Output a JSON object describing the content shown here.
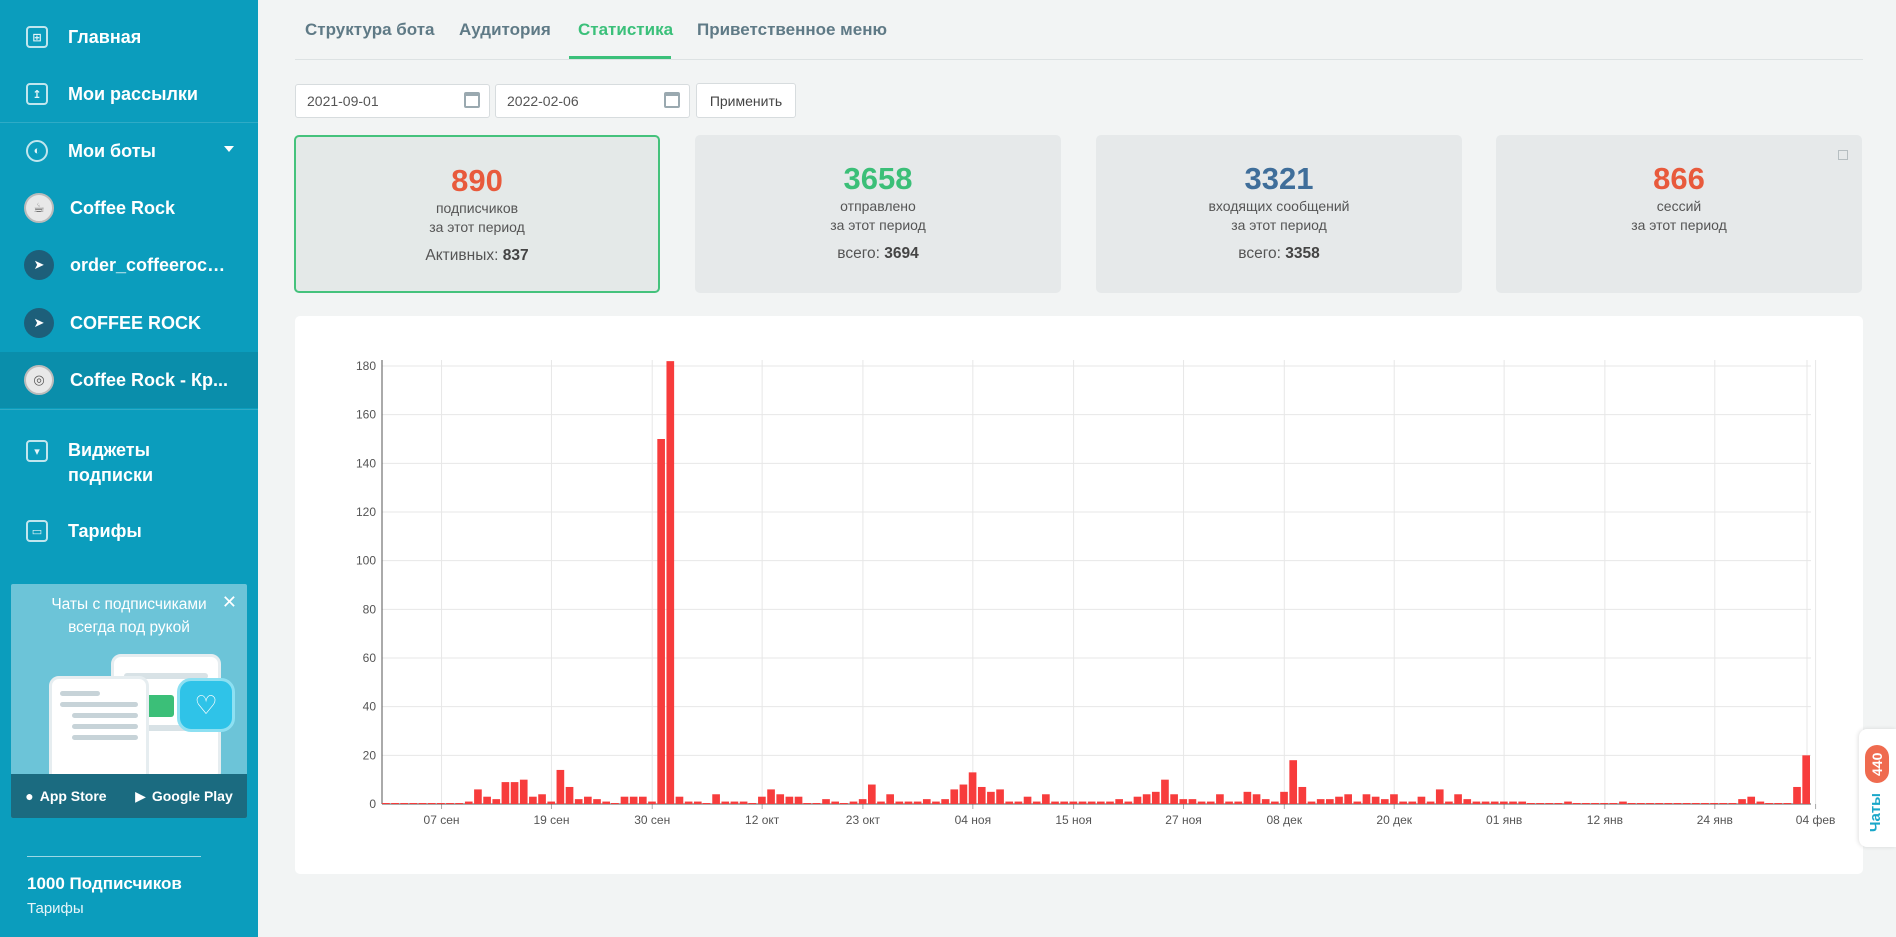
{
  "sidebar": {
    "nav_top": [
      {
        "label": "Главная",
        "icon": "home-icon"
      },
      {
        "label": "Мои рассылки",
        "icon": "mailing-icon"
      },
      {
        "label": "Мои боты",
        "icon": "bots-icon"
      }
    ],
    "bots": [
      {
        "label": "Coffee Rock",
        "icon": "whatsapp-icon"
      },
      {
        "label": "order_coffeerock...",
        "icon": "telegram-icon"
      },
      {
        "label": "COFFEE ROCK",
        "icon": "telegram-icon"
      },
      {
        "label": "Coffee Rock - Кр...",
        "icon": "instagram-icon"
      }
    ],
    "nav_bottom": [
      {
        "label": "Виджеты подписки",
        "icon": "widget-icon"
      },
      {
        "label": "Тарифы",
        "icon": "wallet-icon"
      }
    ],
    "promo": {
      "text": "Чаты с подписчиками всегда под рукой",
      "app_store": "App Store",
      "google_play": "Google Play"
    },
    "plan": {
      "title": "1000 Подписчиков",
      "link": "Тарифы"
    }
  },
  "tabs": [
    {
      "label": "Структура бота",
      "active": false
    },
    {
      "label": "Аудитория",
      "active": false
    },
    {
      "label": "Статистика",
      "active": true
    },
    {
      "label": "Приветственное меню",
      "active": false
    }
  ],
  "filter": {
    "date_from": "2021-09-01",
    "date_to": "2022-02-06",
    "apply_label": "Применить"
  },
  "cards": [
    {
      "value": "890",
      "label1": "подписчиков",
      "label2": "за этот период",
      "extra_label": "Активных: ",
      "extra_value": "837",
      "color": "#e85a3c"
    },
    {
      "value": "3658",
      "label1": "отправлено",
      "label2": "за этот период",
      "extra_label": "всего: ",
      "extra_value": "3694",
      "color": "#3bbf78"
    },
    {
      "value": "3321",
      "label1": "входящих сообщений",
      "label2": "за этот период",
      "extra_label": "всего: ",
      "extra_value": "3358",
      "color": "#3f6e9a"
    },
    {
      "value": "866",
      "label1": "сессий",
      "label2": "за этот период",
      "extra_label": "",
      "extra_value": "",
      "color": "#e85a3c"
    }
  ],
  "chats_tab": {
    "count": "440",
    "label": "Чаты"
  },
  "chart_data": {
    "type": "bar",
    "ylim": [
      0,
      180
    ],
    "yticks": [
      0,
      20,
      40,
      60,
      80,
      100,
      120,
      140,
      160,
      180
    ],
    "xtick_labels": [
      "07 сен",
      "19 сен",
      "30 сен",
      "12 окт",
      "23 окт",
      "04 ноя",
      "15 ноя",
      "27 ноя",
      "08 дек",
      "20 дек",
      "01 янв",
      "12 янв",
      "24 янв",
      "04 фев"
    ],
    "xtick_day_index": [
      6,
      18,
      29,
      41,
      52,
      64,
      75,
      87,
      98,
      110,
      122,
      133,
      145,
      156
    ],
    "bar_color": "#f73c3c",
    "values": [
      0,
      0,
      0,
      0,
      0,
      0,
      0,
      0,
      0,
      1,
      6,
      3,
      2,
      9,
      9,
      10,
      3,
      4,
      1,
      14,
      7,
      2,
      3,
      2,
      1,
      0,
      3,
      3,
      3,
      1,
      150,
      182,
      3,
      1,
      1,
      0,
      4,
      1,
      1,
      1,
      0,
      3,
      6,
      4,
      3,
      3,
      0,
      0,
      2,
      1,
      0,
      1,
      2,
      8,
      1,
      4,
      1,
      1,
      1,
      2,
      1,
      2,
      6,
      8,
      13,
      7,
      5,
      6,
      1,
      1,
      3,
      1,
      4,
      1,
      1,
      1,
      1,
      1,
      1,
      1,
      2,
      1,
      3,
      4,
      5,
      10,
      4,
      2,
      2,
      1,
      1,
      4,
      1,
      1,
      5,
      4,
      2,
      1,
      5,
      18,
      7,
      1,
      2,
      2,
      3,
      4,
      1,
      4,
      3,
      2,
      4,
      1,
      1,
      3,
      1,
      6,
      1,
      4,
      2,
      1,
      1,
      1,
      1,
      1,
      1,
      0,
      0,
      0,
      0,
      1,
      0,
      0,
      0,
      0,
      0,
      1,
      0,
      0,
      0,
      0,
      0,
      0,
      0,
      0,
      0,
      0,
      0,
      0,
      2,
      3,
      1,
      0,
      0,
      0,
      7,
      20
    ]
  }
}
